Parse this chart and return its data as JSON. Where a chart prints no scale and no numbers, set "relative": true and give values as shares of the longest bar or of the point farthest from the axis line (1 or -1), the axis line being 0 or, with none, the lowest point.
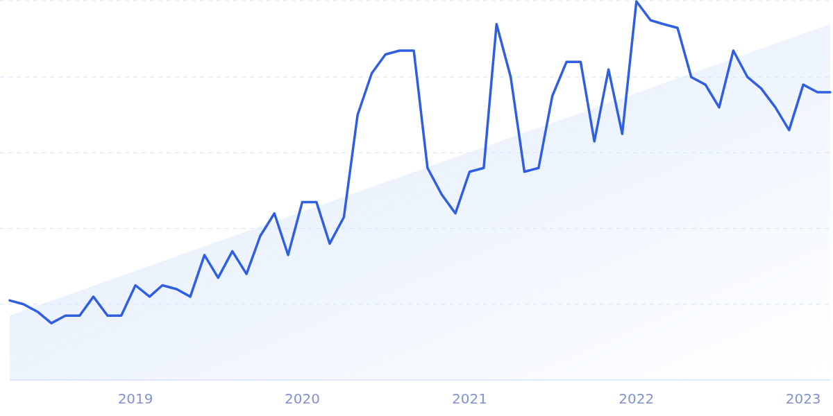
{
  "chart_data": {
    "type": "line",
    "relative": true,
    "grid": "y",
    "xlim": [
      "2018-04",
      "2023-03"
    ],
    "xticks": [
      "2019",
      "2020",
      "2021",
      "2022",
      "2023"
    ],
    "x": [
      "2018-04",
      "2018-05",
      "2018-06",
      "2018-07",
      "2018-08",
      "2018-09",
      "2018-10",
      "2018-11",
      "2018-12",
      "2019-01",
      "2019-02",
      "2019-03",
      "2019-04",
      "2019-05",
      "2019-06",
      "2019-07",
      "2019-08",
      "2019-09",
      "2019-10",
      "2019-11",
      "2019-12",
      "2020-01",
      "2020-02",
      "2020-03",
      "2020-04",
      "2020-05",
      "2020-06",
      "2020-07",
      "2020-08",
      "2020-09",
      "2020-10",
      "2020-11",
      "2020-12",
      "2021-01",
      "2021-02",
      "2021-03",
      "2021-04",
      "2021-05",
      "2021-06",
      "2021-07",
      "2021-08",
      "2021-09",
      "2021-10",
      "2021-11",
      "2021-12",
      "2022-01",
      "2022-02",
      "2022-03",
      "2022-04",
      "2022-05",
      "2022-06",
      "2022-07",
      "2022-08",
      "2022-09",
      "2022-10",
      "2022-11",
      "2022-12",
      "2023-01",
      "2023-02",
      "2023-03"
    ],
    "series": [
      {
        "type": "area",
        "color": "#dce9fb",
        "x": [
          "2018-04",
          "2023-03"
        ],
        "values": [
          0.17,
          0.94
        ]
      },
      {
        "color": "#2f5fe0",
        "values": [
          0.21,
          0.2,
          0.18,
          0.15,
          0.17,
          0.17,
          0.22,
          0.17,
          0.17,
          0.25,
          0.22,
          0.25,
          0.24,
          0.22,
          0.33,
          0.27,
          0.34,
          0.28,
          0.38,
          0.44,
          0.33,
          0.47,
          0.47,
          0.36,
          0.43,
          0.7,
          0.81,
          0.86,
          0.87,
          0.87,
          0.56,
          0.49,
          0.44,
          0.55,
          0.56,
          0.94,
          0.8,
          0.55,
          0.56,
          0.75,
          0.84,
          0.84,
          0.63,
          0.82,
          0.65,
          1,
          0.95,
          0.94,
          0.93,
          0.8,
          0.78,
          0.72,
          0.87,
          0.8,
          0.77,
          0.72,
          0.66,
          0.78,
          0.76,
          0.76
        ]
      }
    ]
  }
}
